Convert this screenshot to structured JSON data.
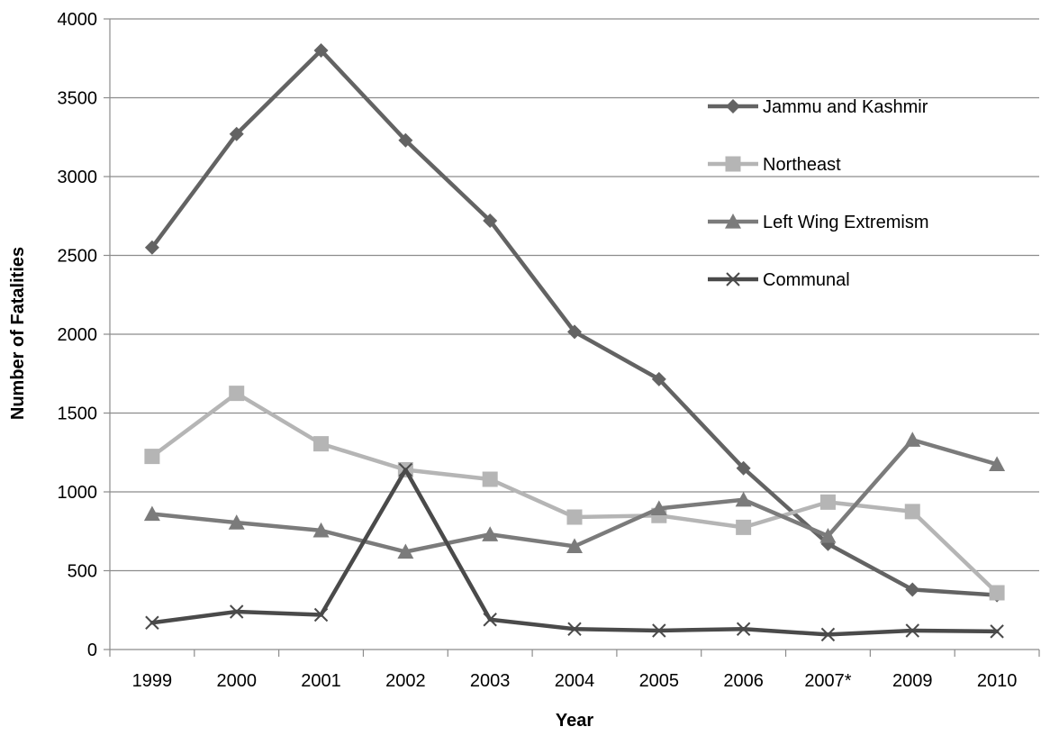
{
  "chart_data": {
    "type": "line",
    "title": "",
    "xlabel": "Year",
    "ylabel": "Number of Fatalities",
    "categories": [
      "1999",
      "2000",
      "2001",
      "2002",
      "2003",
      "2004",
      "2005",
      "2006",
      "2007*",
      "2009",
      "2010"
    ],
    "ylim": [
      0,
      4000
    ],
    "yticks": [
      0,
      500,
      1000,
      1500,
      2000,
      2500,
      3000,
      3500,
      4000
    ],
    "grid": true,
    "legend_position": "top-right",
    "series": [
      {
        "name": "Jammu and Kashmir",
        "marker": "diamond",
        "color": "#636363",
        "values": [
          2550,
          3270,
          3800,
          3230,
          2720,
          2015,
          1715,
          1150,
          670,
          380,
          345
        ]
      },
      {
        "name": "Northeast",
        "marker": "square",
        "color": "#b5b5b5",
        "values": [
          1225,
          1625,
          1305,
          1140,
          1080,
          840,
          850,
          775,
          935,
          875,
          360
        ]
      },
      {
        "name": "Left Wing Extremism",
        "marker": "triangle",
        "color": "#7b7b7b",
        "values": [
          860,
          805,
          755,
          620,
          730,
          655,
          895,
          950,
          720,
          1330,
          1175
        ]
      },
      {
        "name": "Communal",
        "marker": "x",
        "color": "#4a4a4a",
        "values": [
          170,
          240,
          220,
          1140,
          190,
          130,
          120,
          130,
          95,
          120,
          115
        ]
      }
    ]
  }
}
